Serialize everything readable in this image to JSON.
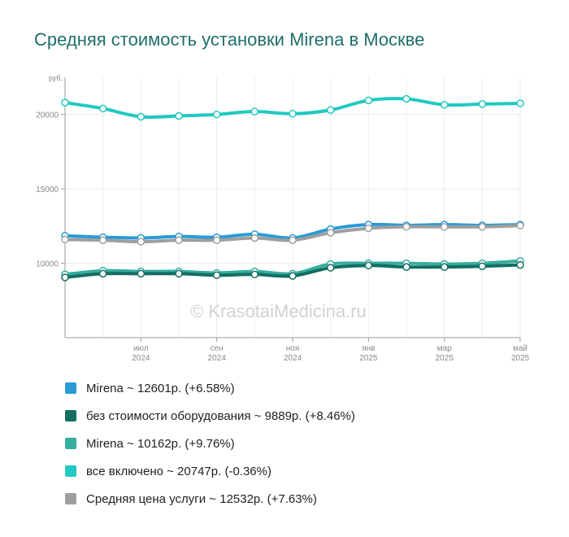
{
  "title": "Средняя стоимость установки Mirena в Москве",
  "watermark": "© KrasotaiMedicina.ru",
  "chart_data": {
    "type": "line",
    "y_unit": "руб.",
    "ylim": [
      5000,
      22500
    ],
    "yticks": [
      10000,
      15000,
      20000
    ],
    "grid": true,
    "legend_position": "bottom",
    "x": [
      "2024-05",
      "2024-06",
      "2024-07",
      "2024-08",
      "2024-09",
      "2024-10",
      "2024-11",
      "2024-12",
      "2025-01",
      "2025-02",
      "2025-03",
      "2025-04",
      "2025-05"
    ],
    "x_tick_labels": [
      {
        "month": "июл",
        "year": "2024"
      },
      {
        "month": "сен",
        "year": "2024"
      },
      {
        "month": "ноя",
        "year": "2024"
      },
      {
        "month": "янв",
        "year": "2025"
      },
      {
        "month": "мар",
        "year": "2025"
      },
      {
        "month": "май",
        "year": "2025"
      }
    ],
    "x_tick_index": [
      2,
      4,
      6,
      8,
      10,
      12
    ],
    "series": [
      {
        "color": "#20c9c1",
        "legend": "все включено ~ 20747р. (-0.36%)",
        "values": [
          20800,
          20400,
          19850,
          19900,
          20000,
          20200,
          20050,
          20300,
          20950,
          21050,
          20650,
          20700,
          20747
        ]
      },
      {
        "color": "#2a9bd6",
        "legend": "Mirena ~ 12601р. (+6.58%)",
        "values": [
          11850,
          11750,
          11700,
          11800,
          11750,
          11950,
          11700,
          12300,
          12600,
          12550,
          12600,
          12550,
          12601
        ]
      },
      {
        "color": "#9e9e9e",
        "legend": "Средняя цена услуги ~ 12532р. (+7.63%)",
        "values": [
          11600,
          11550,
          11450,
          11550,
          11550,
          11700,
          11550,
          12050,
          12350,
          12450,
          12450,
          12450,
          12532
        ]
      },
      {
        "color": "#35ad9f",
        "legend": "Mirena ~ 10162р. (+9.76%)",
        "values": [
          9250,
          9500,
          9450,
          9450,
          9350,
          9450,
          9300,
          9950,
          10000,
          10000,
          9950,
          10000,
          10162
        ]
      },
      {
        "color": "#136e62",
        "legend": "без стоимости оборудования ~ 9889р. (+8.46%)",
        "values": [
          9050,
          9300,
          9300,
          9300,
          9200,
          9250,
          9150,
          9700,
          9850,
          9750,
          9750,
          9800,
          9889
        ]
      }
    ]
  },
  "legend_items": [
    {
      "label": "Mirena ~ 12601р. (+6.58%)",
      "color": "#2a9bd6"
    },
    {
      "label": "без стоимости оборудования ~ 9889р. (+8.46%)",
      "color": "#136e62"
    },
    {
      "label": "Mirena ~ 10162р. (+9.76%)",
      "color": "#35ad9f"
    },
    {
      "label": "все включено ~ 20747р. (-0.36%)",
      "color": "#20c9c1"
    },
    {
      "label": "Средняя цена услуги ~ 12532р. (+7.63%)",
      "color": "#9e9e9e"
    }
  ]
}
